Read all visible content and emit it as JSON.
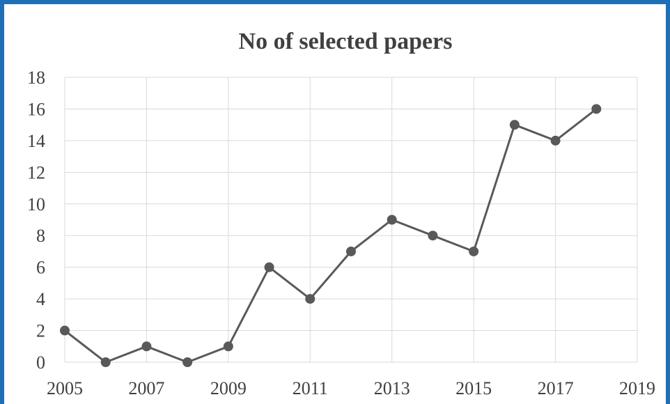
{
  "chart_data": {
    "type": "line",
    "title": "No of selected papers",
    "xlabel": "",
    "ylabel": "",
    "xlim": [
      2005,
      2019
    ],
    "ylim": [
      0,
      18
    ],
    "x_ticks": [
      2005,
      2007,
      2009,
      2011,
      2013,
      2015,
      2017,
      2019
    ],
    "y_ticks": [
      0,
      2,
      4,
      6,
      8,
      10,
      12,
      14,
      16,
      18
    ],
    "grid": true,
    "legend": "none",
    "colors": {
      "series": "#595959",
      "grid": "#d9d9d9",
      "border": "#1f6fb6",
      "text": "#404040"
    },
    "series": [
      {
        "x": [
          2005,
          2006,
          2007,
          2008,
          2009,
          2010,
          2011,
          2012,
          2013,
          2014,
          2015,
          2016,
          2017,
          2018
        ],
        "values": [
          2,
          0,
          1,
          0,
          1,
          6,
          4,
          7,
          9,
          8,
          7,
          15,
          14,
          16
        ]
      }
    ]
  }
}
